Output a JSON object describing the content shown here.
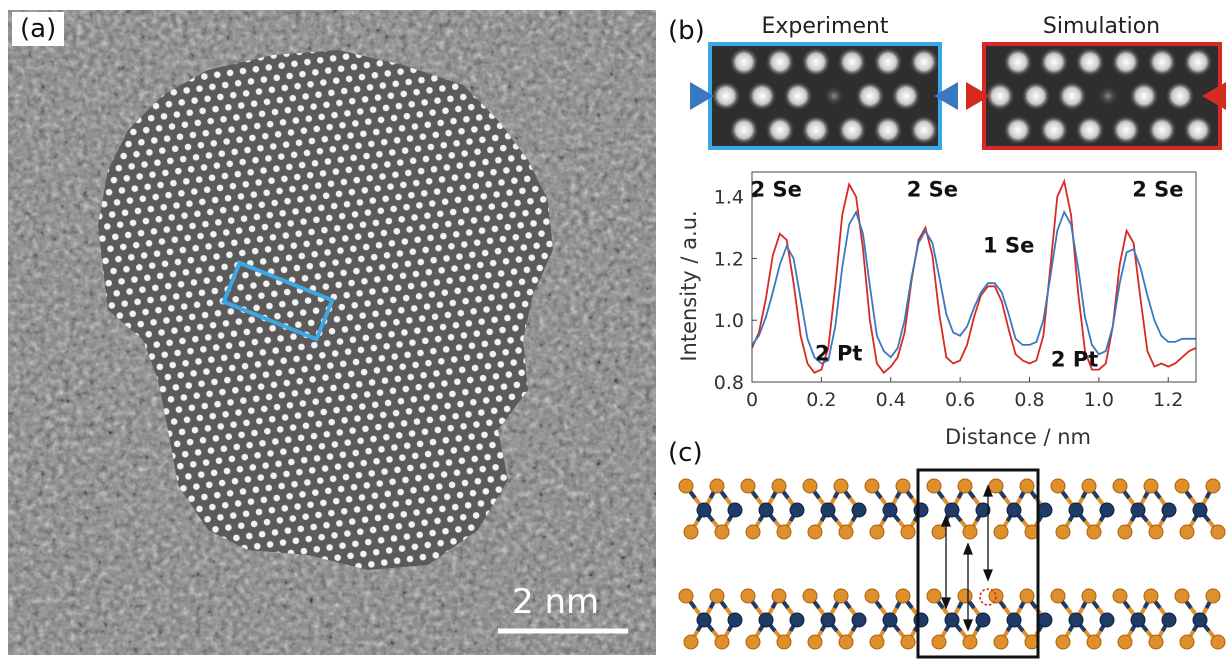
{
  "panel_a": {
    "label": "(a)",
    "scale_bar_label": "2 nm"
  },
  "panel_b": {
    "label": "(b)",
    "experiment_title": "Experiment",
    "simulation_title": "Simulation",
    "colors": {
      "experiment": "#3a78c0",
      "simulation": "#d62a22",
      "box_a": "#3aa8e6"
    }
  },
  "panel_c": {
    "label": "(c)",
    "colors": {
      "metal_atom": "#1f3b68",
      "chalcogen_atom": "#e0902a",
      "vacancy": "#d62a22"
    }
  },
  "chart_data": {
    "type": "line",
    "xlabel": "Distance / nm",
    "ylabel": "Intensity / a.u.",
    "xlim": [
      0,
      1.28
    ],
    "ylim": [
      0.8,
      1.48
    ],
    "xticks": [
      "0",
      "0.2",
      "0.4",
      "0.6",
      "0.8",
      "1.0",
      "1.2"
    ],
    "yticks": [
      "0.8",
      "1.0",
      "1.2",
      "1.4"
    ],
    "annotations": [
      {
        "text": "2 Se",
        "x": 0.07,
        "y": 1.4
      },
      {
        "text": "2 Se",
        "x": 0.52,
        "y": 1.4
      },
      {
        "text": "1 Se",
        "x": 0.74,
        "y": 1.22
      },
      {
        "text": "2 Se",
        "x": 1.17,
        "y": 1.4
      },
      {
        "text": "2 Pt",
        "x": 0.25,
        "y": 0.87
      },
      {
        "text": "2 Pt",
        "x": 0.93,
        "y": 0.85
      }
    ],
    "series": [
      {
        "color": "#d62a22",
        "x": [
          0,
          0.02,
          0.04,
          0.06,
          0.08,
          0.1,
          0.12,
          0.14,
          0.16,
          0.18,
          0.2,
          0.22,
          0.24,
          0.26,
          0.28,
          0.3,
          0.32,
          0.34,
          0.36,
          0.38,
          0.4,
          0.42,
          0.44,
          0.46,
          0.48,
          0.5,
          0.52,
          0.54,
          0.56,
          0.58,
          0.6,
          0.62,
          0.64,
          0.66,
          0.68,
          0.7,
          0.72,
          0.74,
          0.76,
          0.78,
          0.8,
          0.82,
          0.84,
          0.86,
          0.88,
          0.9,
          0.92,
          0.94,
          0.96,
          0.98,
          1.0,
          1.02,
          1.04,
          1.06,
          1.08,
          1.1,
          1.12,
          1.14,
          1.16,
          1.18,
          1.2,
          1.22,
          1.24,
          1.26,
          1.28
        ],
        "y": [
          0.91,
          0.96,
          1.07,
          1.21,
          1.28,
          1.26,
          1.12,
          0.95,
          0.86,
          0.83,
          0.84,
          0.91,
          1.11,
          1.34,
          1.44,
          1.4,
          1.23,
          1.0,
          0.86,
          0.83,
          0.85,
          0.88,
          0.96,
          1.13,
          1.26,
          1.3,
          1.21,
          1.02,
          0.88,
          0.86,
          0.87,
          0.92,
          1.01,
          1.08,
          1.11,
          1.11,
          1.06,
          0.97,
          0.89,
          0.87,
          0.86,
          0.87,
          0.95,
          1.17,
          1.4,
          1.45,
          1.34,
          1.09,
          0.9,
          0.84,
          0.84,
          0.86,
          0.98,
          1.18,
          1.29,
          1.25,
          1.07,
          0.9,
          0.85,
          0.86,
          0.85,
          0.86,
          0.88,
          0.9,
          0.91
        ]
      },
      {
        "color": "#3a78c0",
        "x": [
          0,
          0.02,
          0.04,
          0.06,
          0.08,
          0.1,
          0.12,
          0.14,
          0.16,
          0.18,
          0.2,
          0.22,
          0.24,
          0.26,
          0.28,
          0.3,
          0.32,
          0.34,
          0.36,
          0.38,
          0.4,
          0.42,
          0.44,
          0.46,
          0.48,
          0.5,
          0.52,
          0.54,
          0.56,
          0.58,
          0.6,
          0.62,
          0.64,
          0.66,
          0.68,
          0.7,
          0.72,
          0.74,
          0.76,
          0.78,
          0.8,
          0.82,
          0.84,
          0.86,
          0.88,
          0.9,
          0.92,
          0.94,
          0.96,
          0.98,
          1.0,
          1.02,
          1.04,
          1.06,
          1.08,
          1.1,
          1.12,
          1.14,
          1.16,
          1.18,
          1.2,
          1.22,
          1.24,
          1.26,
          1.28
        ],
        "y": [
          0.92,
          0.95,
          1.01,
          1.09,
          1.18,
          1.24,
          1.2,
          1.07,
          0.94,
          0.88,
          0.86,
          0.87,
          0.98,
          1.17,
          1.31,
          1.35,
          1.28,
          1.11,
          0.95,
          0.9,
          0.88,
          0.91,
          1.0,
          1.14,
          1.25,
          1.29,
          1.25,
          1.14,
          1.02,
          0.96,
          0.95,
          0.98,
          1.04,
          1.09,
          1.12,
          1.12,
          1.09,
          1.02,
          0.94,
          0.92,
          0.92,
          0.93,
          1.0,
          1.14,
          1.29,
          1.35,
          1.31,
          1.17,
          1.01,
          0.92,
          0.89,
          0.9,
          0.98,
          1.12,
          1.22,
          1.23,
          1.17,
          1.08,
          1.0,
          0.95,
          0.93,
          0.93,
          0.94,
          0.94,
          0.94
        ]
      }
    ]
  }
}
